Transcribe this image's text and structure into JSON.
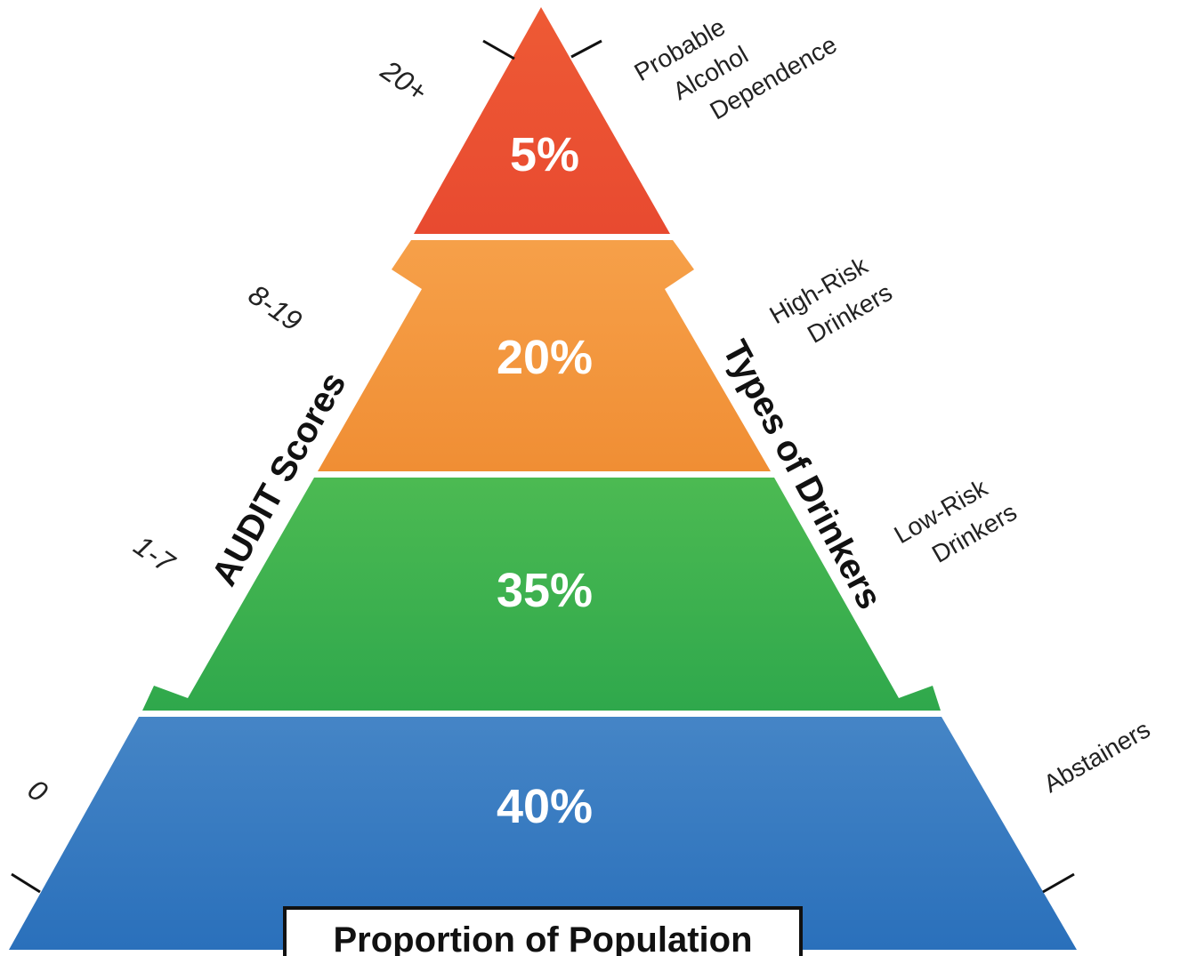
{
  "tiers": [
    {
      "percent": "5%",
      "score": "20+",
      "type_lines": [
        "Probable",
        "Alcohol",
        "Dependence"
      ],
      "color": "#ec5533"
    },
    {
      "percent": "20%",
      "score": "8-19",
      "type_lines": [
        "High-Risk",
        "Drinkers"
      ],
      "color": "#f39a3f"
    },
    {
      "percent": "35%",
      "score": "1-7",
      "type_lines": [
        "Low-Risk",
        "Drinkers"
      ],
      "color": "#3fb24f"
    },
    {
      "percent": "40%",
      "score": "0",
      "type_lines": [
        "Abstainers"
      ],
      "color": "#3879c1"
    }
  ],
  "left_axis_label": "AUDIT Scores",
  "right_axis_label": "Types of Drinkers",
  "footer_label": "Proportion of Population"
}
